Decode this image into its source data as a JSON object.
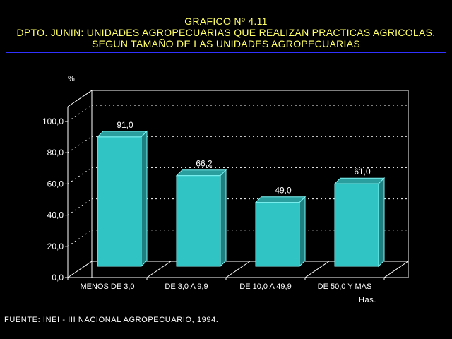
{
  "header": {
    "line1": "GRAFICO Nº 4.11",
    "line2": "DPTO. JUNIN: UNIDADES AGROPECUARIAS QUE REALIZAN PRACTICAS AGRICOLAS,",
    "line3": "SEGUN TAMAÑO DE LAS UNIDADES AGROPECUARIAS"
  },
  "footer": {
    "source": "FUENTE: INEI - III NACIONAL AGROPECUARIO, 1994."
  },
  "chart_data": {
    "type": "bar",
    "title": "GRAFICO Nº 4.11",
    "ylabel": "%",
    "xlabel": "Has.",
    "categories": [
      "MENOS DE 3,0",
      "DE 3,0  A 9,9",
      "DE 10,0 A 49,9",
      "DE 50,0 Y MAS"
    ],
    "values": [
      91.0,
      66.2,
      49.0,
      61.0
    ],
    "value_labels": [
      "91,0",
      "66,2",
      "49,0",
      "61,0"
    ],
    "yticks": [
      "0,0",
      "20,0",
      "40,0",
      "60,0",
      "80,0",
      "100,0"
    ],
    "ylim": [
      0,
      100
    ],
    "grid": true,
    "colors": {
      "bar_front": "#30c4c4",
      "bar_top": "#2a9e9e",
      "bar_side": "#1d7f7f",
      "bar_edge": "#7ff5f5",
      "title": "#ffff66",
      "axis": "#ffffff",
      "rule": "#3030ff"
    }
  }
}
